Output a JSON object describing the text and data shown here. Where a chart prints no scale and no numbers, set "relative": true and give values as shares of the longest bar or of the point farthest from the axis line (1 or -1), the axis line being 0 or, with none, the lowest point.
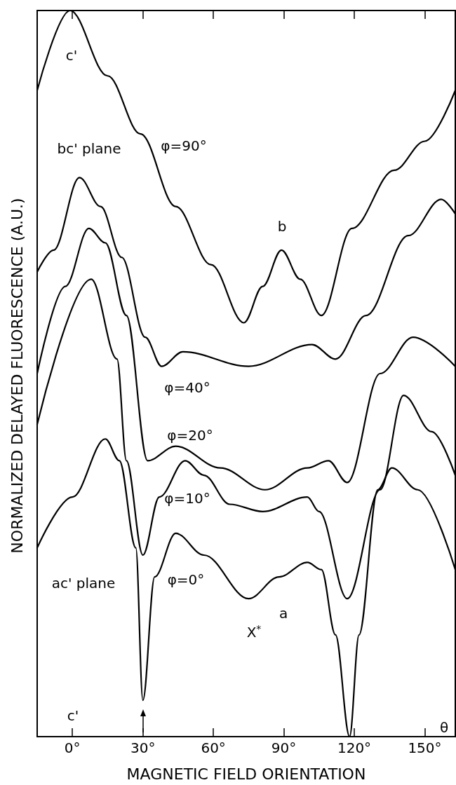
{
  "chart_data": {
    "type": "line",
    "relative": true,
    "xlabel": "MAGNETIC FIELD ORIENTATION",
    "ylabel": "NORMALIZED DELAYED FLUORESCENCE (A.U.)",
    "xlim": [
      -15,
      163
    ],
    "xticks": [
      {
        "value": 0,
        "label": "0°"
      },
      {
        "value": 30,
        "label": "30°"
      },
      {
        "value": 60,
        "label": "60°"
      },
      {
        "value": 90,
        "label": "90°"
      },
      {
        "value": 120,
        "label": "120°"
      },
      {
        "value": 150,
        "label": "150°"
      }
    ],
    "series": [
      {
        "color": "#000000",
        "x": [
          -15,
          -1,
          15,
          29,
          44,
          59,
          73,
          81,
          89,
          97,
          106,
          119,
          137,
          150,
          163
        ],
        "values": [
          0.89,
          1.0,
          0.91,
          0.83,
          0.73,
          0.65,
          0.57,
          0.62,
          0.67,
          0.63,
          0.58,
          0.7,
          0.78,
          0.82,
          0.89
        ]
      },
      {
        "color": "#000000",
        "x": [
          -15,
          -8,
          3,
          12,
          21,
          31,
          38,
          47,
          75,
          102,
          112,
          125,
          143,
          157,
          163
        ],
        "values": [
          0.64,
          0.67,
          0.77,
          0.73,
          0.66,
          0.55,
          0.51,
          0.53,
          0.51,
          0.54,
          0.52,
          0.58,
          0.69,
          0.74,
          0.72
        ]
      },
      {
        "color": "#000000",
        "x": [
          -15,
          -3,
          7,
          14,
          23,
          32,
          44,
          63,
          82,
          100,
          109,
          117,
          131,
          145,
          163
        ],
        "values": [
          0.5,
          0.62,
          0.7,
          0.68,
          0.58,
          0.38,
          0.4,
          0.37,
          0.34,
          0.37,
          0.38,
          0.35,
          0.5,
          0.55,
          0.51
        ]
      },
      {
        "color": "#000000",
        "x": [
          -15,
          8,
          19,
          23,
          30,
          37,
          48,
          56,
          67,
          81,
          100,
          105,
          117,
          131,
          141,
          153,
          163
        ],
        "values": [
          0.43,
          0.63,
          0.52,
          0.38,
          0.25,
          0.33,
          0.38,
          0.36,
          0.32,
          0.31,
          0.33,
          0.31,
          0.19,
          0.34,
          0.47,
          0.42,
          0.36
        ]
      },
      {
        "color": "#000000",
        "x": [
          -15,
          0,
          14,
          20,
          27,
          30,
          35,
          44,
          56,
          75,
          88,
          100,
          106,
          112,
          118,
          122,
          130,
          136,
          147,
          163
        ],
        "values": [
          0.26,
          0.33,
          0.41,
          0.38,
          0.26,
          0.05,
          0.22,
          0.28,
          0.25,
          0.19,
          0.22,
          0.24,
          0.23,
          0.14,
          0.0,
          0.14,
          0.34,
          0.37,
          0.34,
          0.23
        ]
      }
    ],
    "annotations": [
      "c'",
      "b",
      "bc' plane",
      "φ=90°",
      "φ=40°",
      "φ=20°",
      "φ=10°",
      "φ=0°",
      "ac' plane",
      "X$^{*}$",
      "a",
      "c'",
      "θ"
    ],
    "marker": "none",
    "line_style": "solid",
    "grid": false
  }
}
